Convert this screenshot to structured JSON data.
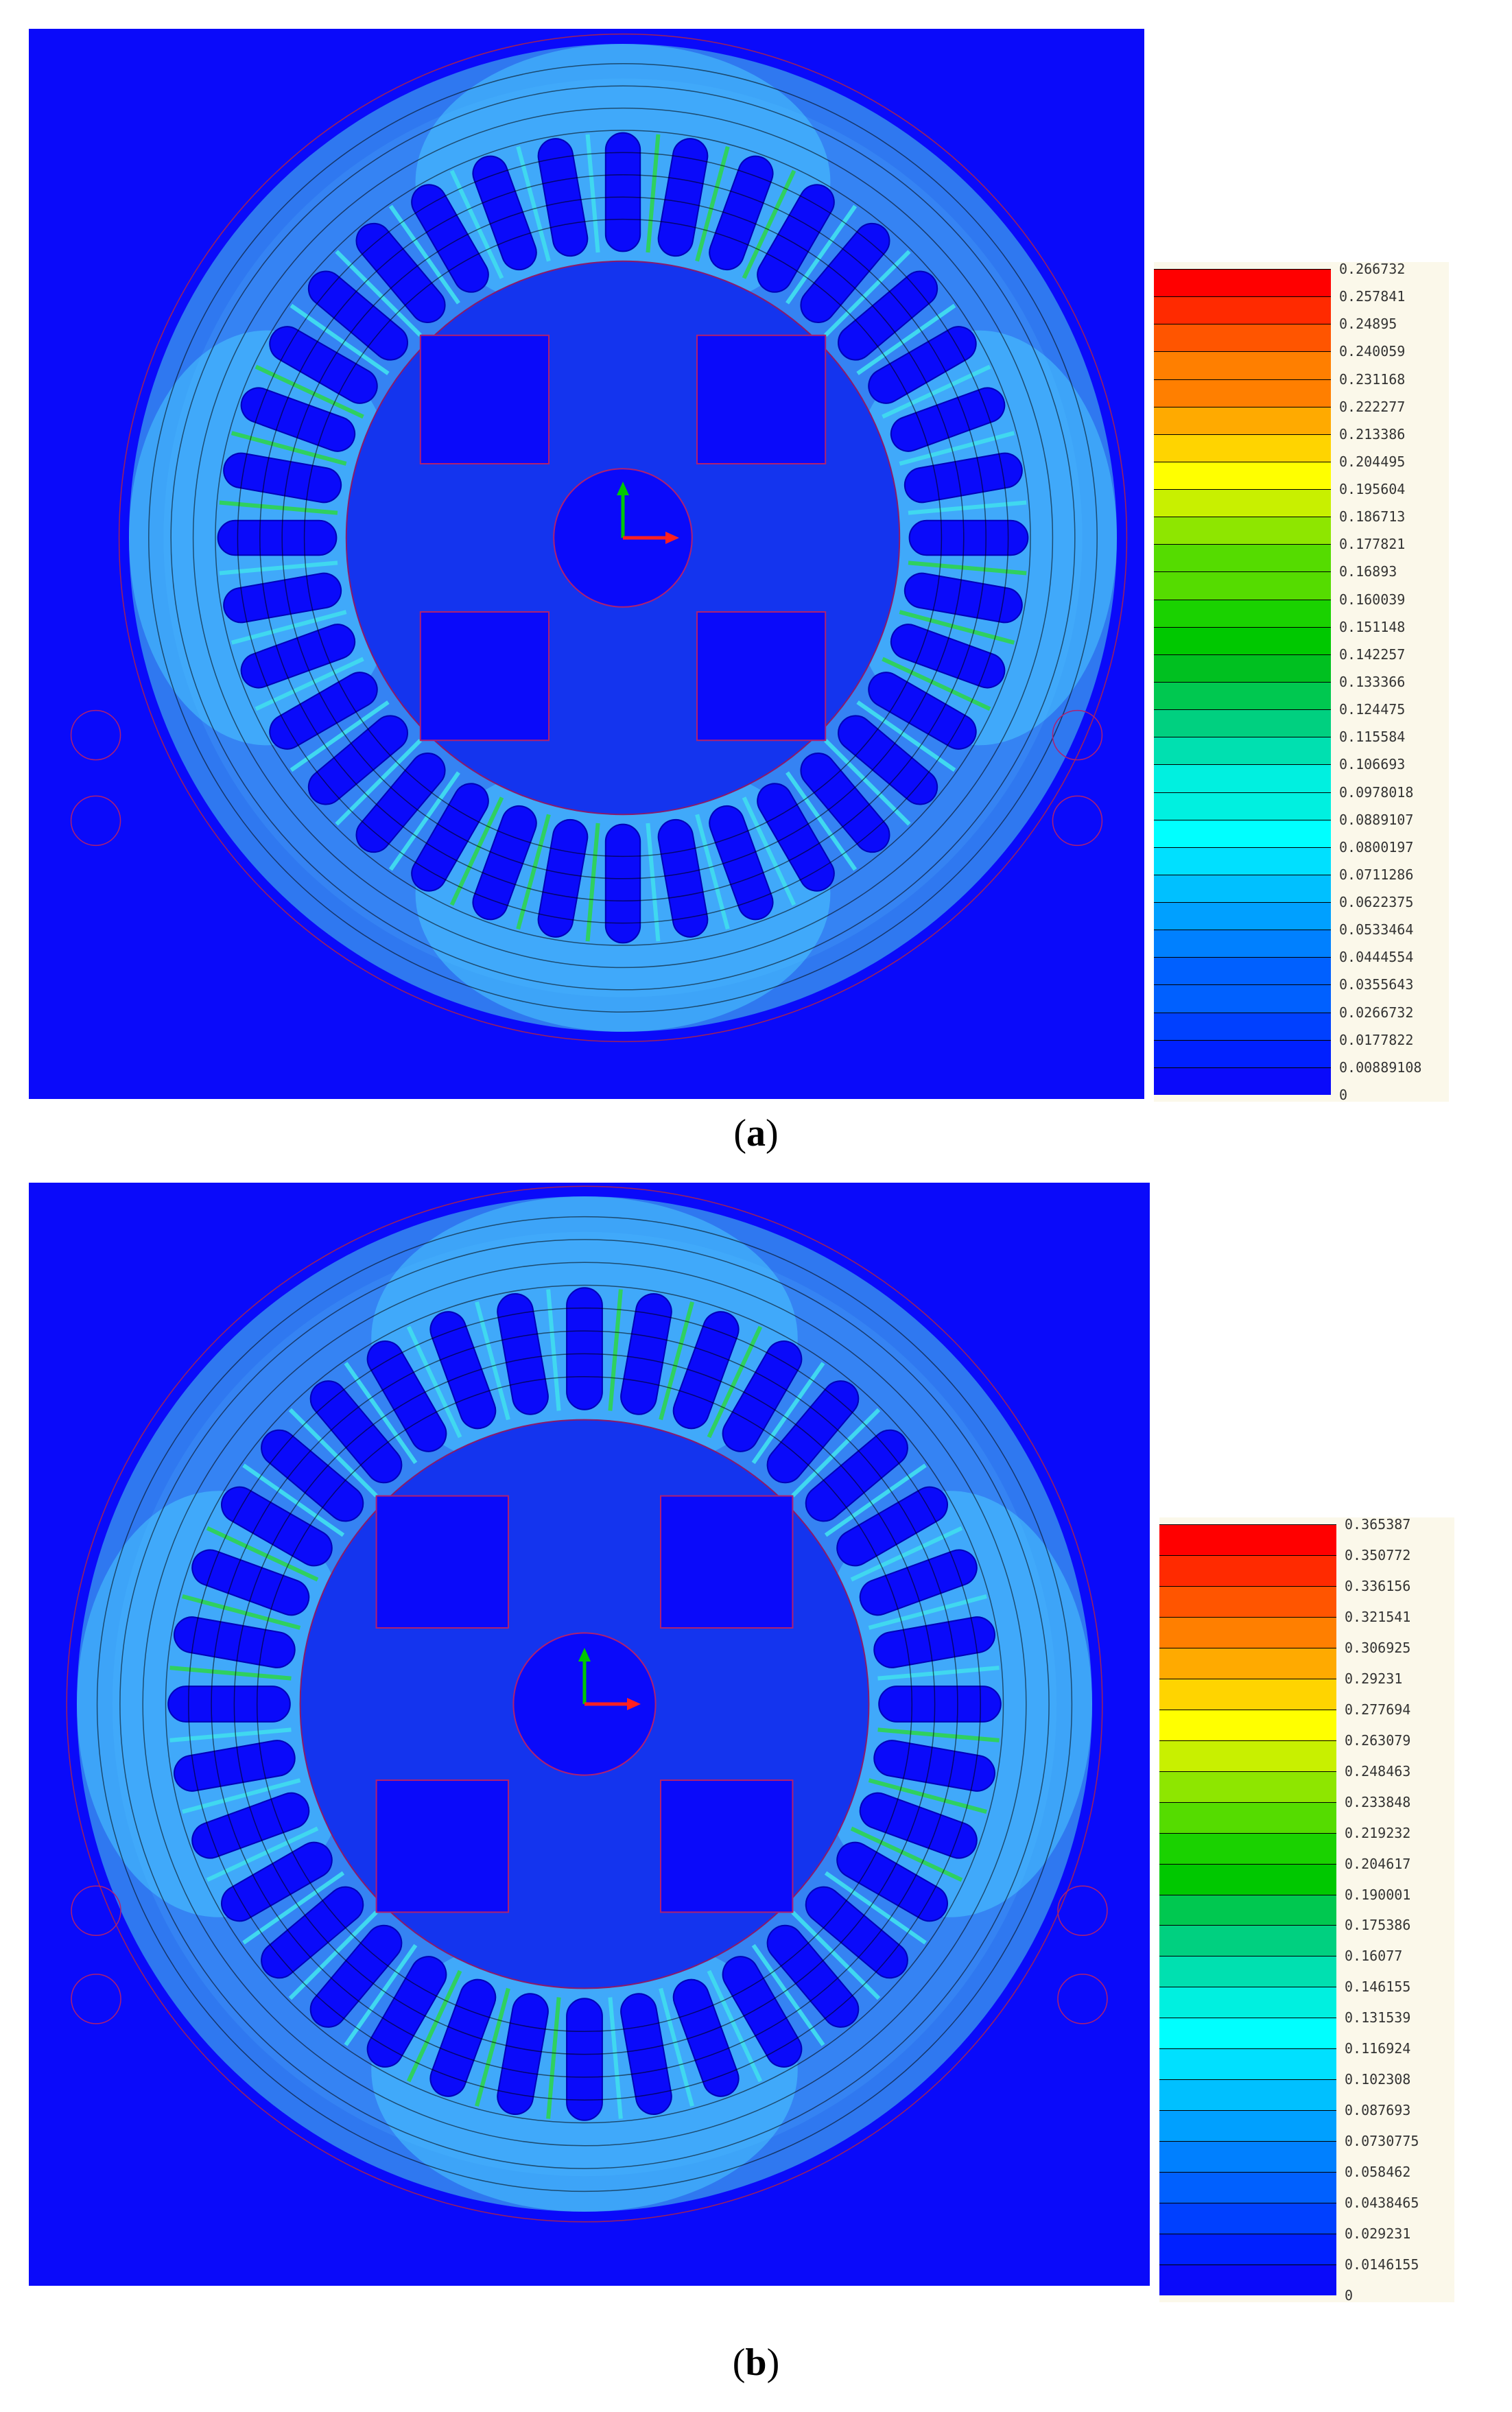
{
  "figure": {
    "panels": [
      {
        "caption_letter": "a",
        "legend_values": [
          "0.266732",
          "0.257841",
          "0.24895",
          "0.240059",
          "0.231168",
          "0.222277",
          "0.213386",
          "0.204495",
          "0.195604",
          "0.186713",
          "0.177821",
          "0.16893",
          "0.160039",
          "0.151148",
          "0.142257",
          "0.133366",
          "0.124475",
          "0.115584",
          "0.106693",
          "0.0978018",
          "0.0889107",
          "0.0800197",
          "0.0711286",
          "0.0622375",
          "0.0533464",
          "0.0444554",
          "0.0355643",
          "0.0266732",
          "0.0177822",
          "0.00889108",
          "0"
        ]
      },
      {
        "caption_letter": "b",
        "legend_values": [
          "0.365387",
          "0.350772",
          "0.336156",
          "0.321541",
          "0.306925",
          "0.29231",
          "0.277694",
          "0.263079",
          "0.248463",
          "0.233848",
          "0.219232",
          "0.204617",
          "0.190001",
          "0.175386",
          "0.16077",
          "0.146155",
          "0.131539",
          "0.116924",
          "0.102308",
          "0.087693",
          "0.0730775",
          "0.058462",
          "0.0438465",
          "0.029231",
          "0.0146155",
          "0"
        ]
      }
    ],
    "colorscale": [
      "#ff0000",
      "#ff2a00",
      "#ff5500",
      "#ff7f00",
      "#ffaa00",
      "#ffd400",
      "#ffff00",
      "#c8f000",
      "#8ee600",
      "#55dc00",
      "#1ad200",
      "#00c800",
      "#00c020",
      "#00c850",
      "#00d080",
      "#00e0b0",
      "#00f0e0",
      "#00ffff",
      "#00e0ff",
      "#00c0ff",
      "#00a0ff",
      "#0080ff",
      "#0060ff",
      "#0040ff",
      "#0020ff",
      "#0a0afa"
    ]
  }
}
